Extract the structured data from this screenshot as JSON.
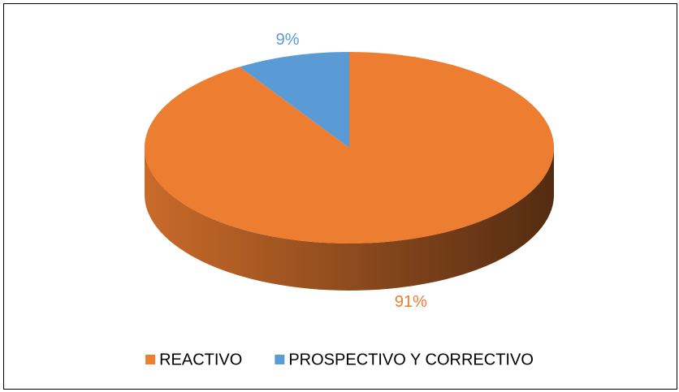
{
  "chart_data": {
    "type": "pie3d",
    "categories": [
      "REACTIVO",
      "PROSPECTIVO Y CORRECTIVO"
    ],
    "values": [
      91,
      9
    ],
    "value_labels": [
      "91%",
      "9%"
    ],
    "colors": [
      "#ED7D31",
      "#5B9BD5"
    ],
    "legend": "bottom"
  }
}
